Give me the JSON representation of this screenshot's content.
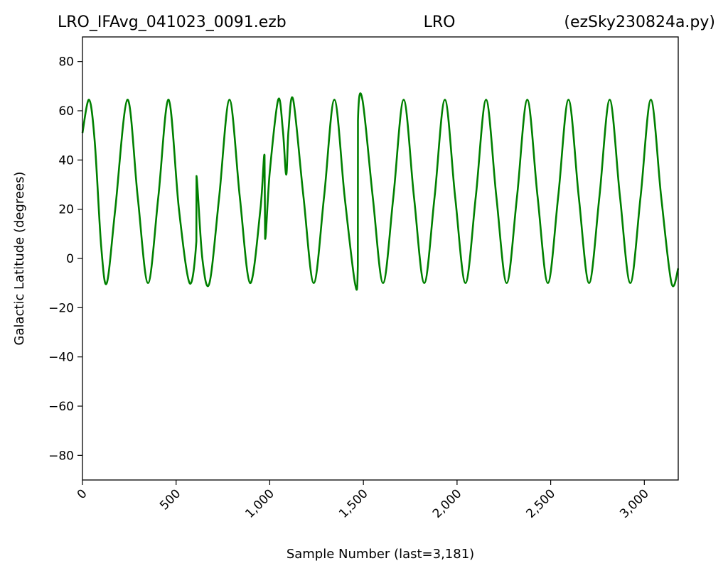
{
  "chart_data": {
    "type": "line",
    "title_left": "LRO_IFAvg_041023_0091.ezb",
    "title_center": "LRO",
    "title_right": "(ezSky230824a.py)",
    "xlabel": "Sample Number (last=3,181)",
    "ylabel": "Galactic Latitude (degrees)",
    "xlim": [
      0,
      3181
    ],
    "ylim": [
      -90,
      90
    ],
    "xticks": [
      0,
      500,
      1000,
      1500,
      2000,
      2500,
      3000
    ],
    "xtick_labels": [
      "0",
      "500",
      "1,000",
      "1,500",
      "2,000",
      "2,500",
      "3,000"
    ],
    "yticks": [
      80,
      60,
      40,
      20,
      0,
      -20,
      -40,
      -60,
      -80
    ],
    "ytick_labels": [
      "80",
      "60",
      "40",
      "20",
      "0",
      "−20",
      "−40",
      "−60",
      "−80"
    ],
    "grid": false,
    "series": [
      {
        "color": "#008000",
        "points": [
          [
            0,
            51
          ],
          [
            35,
            64.5
          ],
          [
            65,
            48
          ],
          [
            100,
            5
          ],
          [
            130,
            -10
          ],
          [
            175,
            20
          ],
          [
            240,
            64.5
          ],
          [
            295,
            25
          ],
          [
            350,
            -10
          ],
          [
            405,
            25
          ],
          [
            460,
            64.5
          ],
          [
            515,
            20
          ],
          [
            572,
            -10
          ],
          [
            608,
            7
          ],
          [
            609,
            33.5
          ],
          [
            640,
            0
          ],
          [
            678,
            -10
          ],
          [
            730,
            25
          ],
          [
            785,
            64.5
          ],
          [
            840,
            25
          ],
          [
            895,
            -10
          ],
          [
            950,
            20
          ],
          [
            972,
            42
          ],
          [
            975,
            8
          ],
          [
            1000,
            35
          ],
          [
            1045,
            64.5
          ],
          [
            1070,
            52
          ],
          [
            1088,
            34
          ],
          [
            1100,
            52
          ],
          [
            1125,
            64.5
          ],
          [
            1180,
            25
          ],
          [
            1235,
            -10
          ],
          [
            1290,
            25
          ],
          [
            1345,
            64.5
          ],
          [
            1400,
            25
          ],
          [
            1455,
            -10
          ],
          [
            1470,
            -3
          ],
          [
            1471,
            56
          ],
          [
            1495,
            64.5
          ],
          [
            1550,
            25
          ],
          [
            1605,
            -10
          ],
          [
            1660,
            25
          ],
          [
            1715,
            64.5
          ],
          [
            1770,
            25
          ],
          [
            1825,
            -10
          ],
          [
            1880,
            25
          ],
          [
            1935,
            64.5
          ],
          [
            1990,
            25
          ],
          [
            2045,
            -10
          ],
          [
            2100,
            25
          ],
          [
            2155,
            64.5
          ],
          [
            2210,
            25
          ],
          [
            2265,
            -10
          ],
          [
            2320,
            25
          ],
          [
            2375,
            64.5
          ],
          [
            2430,
            25
          ],
          [
            2485,
            -10
          ],
          [
            2540,
            25
          ],
          [
            2595,
            64.5
          ],
          [
            2650,
            25
          ],
          [
            2705,
            -10
          ],
          [
            2760,
            25
          ],
          [
            2815,
            64.5
          ],
          [
            2870,
            25
          ],
          [
            2925,
            -10
          ],
          [
            2980,
            25
          ],
          [
            3035,
            64.5
          ],
          [
            3090,
            25
          ],
          [
            3145,
            -10
          ],
          [
            3181,
            -4
          ]
        ]
      }
    ]
  }
}
